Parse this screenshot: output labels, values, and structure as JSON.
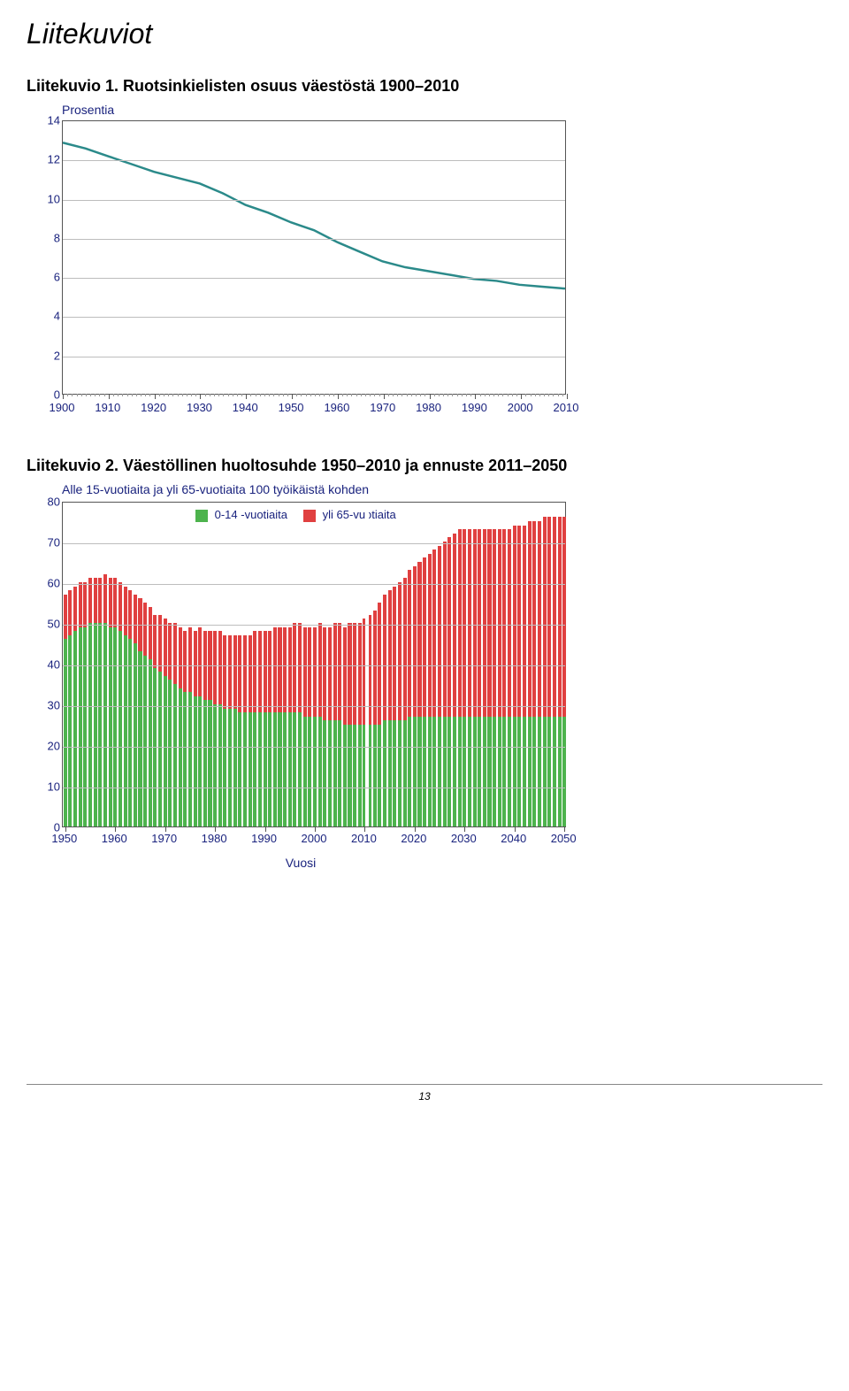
{
  "page": {
    "title": "Liitekuviot",
    "footer_page_number": "13"
  },
  "chart1": {
    "caption_prefix": "Liitekuvio 1.",
    "caption_rest": "Ruotsinkielisten osuus väestöstä 1900–2010",
    "type": "line",
    "y_axis_title": "Prosentia",
    "ylim": [
      0,
      14
    ],
    "ytick_step": 2,
    "yticks": [
      0,
      2,
      4,
      6,
      8,
      10,
      12,
      14
    ],
    "xlim": [
      1900,
      2010
    ],
    "xticks": [
      1900,
      1910,
      1920,
      1930,
      1940,
      1950,
      1960,
      1970,
      1980,
      1990,
      2000,
      2010
    ],
    "xminor_step": 1,
    "line_color": "#2b8a8a",
    "line_width": 2.5,
    "grid_color": "#bdbdbd",
    "axis_color": "#555555",
    "label_color": "#1a237e",
    "background_color": "#ffffff",
    "label_fontsize": 13,
    "data": [
      {
        "x": 1900,
        "y": 12.9
      },
      {
        "x": 1905,
        "y": 12.6
      },
      {
        "x": 1910,
        "y": 12.2
      },
      {
        "x": 1915,
        "y": 11.8
      },
      {
        "x": 1920,
        "y": 11.4
      },
      {
        "x": 1925,
        "y": 11.1
      },
      {
        "x": 1930,
        "y": 10.8
      },
      {
        "x": 1935,
        "y": 10.3
      },
      {
        "x": 1940,
        "y": 9.7
      },
      {
        "x": 1945,
        "y": 9.3
      },
      {
        "x": 1950,
        "y": 8.8
      },
      {
        "x": 1955,
        "y": 8.4
      },
      {
        "x": 1960,
        "y": 7.8
      },
      {
        "x": 1965,
        "y": 7.3
      },
      {
        "x": 1970,
        "y": 6.8
      },
      {
        "x": 1975,
        "y": 6.5
      },
      {
        "x": 1980,
        "y": 6.3
      },
      {
        "x": 1985,
        "y": 6.1
      },
      {
        "x": 1990,
        "y": 5.9
      },
      {
        "x": 1995,
        "y": 5.8
      },
      {
        "x": 2000,
        "y": 5.6
      },
      {
        "x": 2005,
        "y": 5.5
      },
      {
        "x": 2010,
        "y": 5.4
      }
    ]
  },
  "chart2": {
    "caption_prefix": "Liitekuvio 2.",
    "caption_rest": "Väestöllinen huoltosuhde 1950–2010 ja ennuste 2011–2050",
    "type": "stacked-bar",
    "y_axis_title": "Alle 15-vuotiaita ja yli 65-vuotiaita 100 työikäistä kohden",
    "x_axis_title": "Vuosi",
    "legend": [
      {
        "label": "0-14 -vuotiaita",
        "color": "#4db34d"
      },
      {
        "label": "yli 65-vuotiaita",
        "color": "#e04040"
      }
    ],
    "ylim": [
      0,
      80
    ],
    "ytick_step": 10,
    "yticks": [
      0,
      10,
      20,
      30,
      40,
      50,
      60,
      70,
      80
    ],
    "xlim": [
      1950,
      2050
    ],
    "xticks": [
      1950,
      1960,
      1970,
      1980,
      1990,
      2000,
      2010,
      2020,
      2030,
      2040,
      2050
    ],
    "series_green_color": "#4db34d",
    "series_red_color": "#e04040",
    "grid_color": "#bdbdbd",
    "axis_color": "#555555",
    "label_color": "#1a237e",
    "background_color": "#ffffff",
    "label_fontsize": 13,
    "bar_width_ratio": 0.72,
    "gap_after_year": 2010,
    "data": [
      {
        "year": 1950,
        "green": 46,
        "red": 11
      },
      {
        "year": 1951,
        "green": 47,
        "red": 11
      },
      {
        "year": 1952,
        "green": 48,
        "red": 11
      },
      {
        "year": 1953,
        "green": 49,
        "red": 11
      },
      {
        "year": 1954,
        "green": 49,
        "red": 11
      },
      {
        "year": 1955,
        "green": 50,
        "red": 11
      },
      {
        "year": 1956,
        "green": 50,
        "red": 11
      },
      {
        "year": 1957,
        "green": 50,
        "red": 11
      },
      {
        "year": 1958,
        "green": 50,
        "red": 12
      },
      {
        "year": 1959,
        "green": 49,
        "red": 12
      },
      {
        "year": 1960,
        "green": 49,
        "red": 12
      },
      {
        "year": 1961,
        "green": 48,
        "red": 12
      },
      {
        "year": 1962,
        "green": 47,
        "red": 12
      },
      {
        "year": 1963,
        "green": 46,
        "red": 12
      },
      {
        "year": 1964,
        "green": 45,
        "red": 12
      },
      {
        "year": 1965,
        "green": 43,
        "red": 13
      },
      {
        "year": 1966,
        "green": 42,
        "red": 13
      },
      {
        "year": 1967,
        "green": 41,
        "red": 13
      },
      {
        "year": 1968,
        "green": 39,
        "red": 13
      },
      {
        "year": 1969,
        "green": 38,
        "red": 14
      },
      {
        "year": 1970,
        "green": 37,
        "red": 14
      },
      {
        "year": 1971,
        "green": 36,
        "red": 14
      },
      {
        "year": 1972,
        "green": 35,
        "red": 15
      },
      {
        "year": 1973,
        "green": 34,
        "red": 15
      },
      {
        "year": 1974,
        "green": 33,
        "red": 15
      },
      {
        "year": 1975,
        "green": 33,
        "red": 16
      },
      {
        "year": 1976,
        "green": 32,
        "red": 16
      },
      {
        "year": 1977,
        "green": 32,
        "red": 17
      },
      {
        "year": 1978,
        "green": 31,
        "red": 17
      },
      {
        "year": 1979,
        "green": 31,
        "red": 17
      },
      {
        "year": 1980,
        "green": 30,
        "red": 18
      },
      {
        "year": 1981,
        "green": 30,
        "red": 18
      },
      {
        "year": 1982,
        "green": 29,
        "red": 18
      },
      {
        "year": 1983,
        "green": 29,
        "red": 18
      },
      {
        "year": 1984,
        "green": 29,
        "red": 18
      },
      {
        "year": 1985,
        "green": 28,
        "red": 19
      },
      {
        "year": 1986,
        "green": 28,
        "red": 19
      },
      {
        "year": 1987,
        "green": 28,
        "red": 19
      },
      {
        "year": 1988,
        "green": 28,
        "red": 20
      },
      {
        "year": 1989,
        "green": 28,
        "red": 20
      },
      {
        "year": 1990,
        "green": 28,
        "red": 20
      },
      {
        "year": 1991,
        "green": 28,
        "red": 20
      },
      {
        "year": 1992,
        "green": 28,
        "red": 21
      },
      {
        "year": 1993,
        "green": 28,
        "red": 21
      },
      {
        "year": 1994,
        "green": 28,
        "red": 21
      },
      {
        "year": 1995,
        "green": 28,
        "red": 21
      },
      {
        "year": 1996,
        "green": 28,
        "red": 22
      },
      {
        "year": 1997,
        "green": 28,
        "red": 22
      },
      {
        "year": 1998,
        "green": 27,
        "red": 22
      },
      {
        "year": 1999,
        "green": 27,
        "red": 22
      },
      {
        "year": 2000,
        "green": 27,
        "red": 22
      },
      {
        "year": 2001,
        "green": 27,
        "red": 23
      },
      {
        "year": 2002,
        "green": 26,
        "red": 23
      },
      {
        "year": 2003,
        "green": 26,
        "red": 23
      },
      {
        "year": 2004,
        "green": 26,
        "red": 24
      },
      {
        "year": 2005,
        "green": 26,
        "red": 24
      },
      {
        "year": 2006,
        "green": 25,
        "red": 24
      },
      {
        "year": 2007,
        "green": 25,
        "red": 25
      },
      {
        "year": 2008,
        "green": 25,
        "red": 25
      },
      {
        "year": 2009,
        "green": 25,
        "red": 25
      },
      {
        "year": 2010,
        "green": 25,
        "red": 26
      },
      {
        "year": 2011,
        "green": 25,
        "red": 27
      },
      {
        "year": 2012,
        "green": 25,
        "red": 28
      },
      {
        "year": 2013,
        "green": 25,
        "red": 30
      },
      {
        "year": 2014,
        "green": 26,
        "red": 31
      },
      {
        "year": 2015,
        "green": 26,
        "red": 32
      },
      {
        "year": 2016,
        "green": 26,
        "red": 33
      },
      {
        "year": 2017,
        "green": 26,
        "red": 34
      },
      {
        "year": 2018,
        "green": 26,
        "red": 35
      },
      {
        "year": 2019,
        "green": 27,
        "red": 36
      },
      {
        "year": 2020,
        "green": 27,
        "red": 37
      },
      {
        "year": 2021,
        "green": 27,
        "red": 38
      },
      {
        "year": 2022,
        "green": 27,
        "red": 39
      },
      {
        "year": 2023,
        "green": 27,
        "red": 40
      },
      {
        "year": 2024,
        "green": 27,
        "red": 41
      },
      {
        "year": 2025,
        "green": 27,
        "red": 42
      },
      {
        "year": 2026,
        "green": 27,
        "red": 43
      },
      {
        "year": 2027,
        "green": 27,
        "red": 44
      },
      {
        "year": 2028,
        "green": 27,
        "red": 45
      },
      {
        "year": 2029,
        "green": 27,
        "red": 46
      },
      {
        "year": 2030,
        "green": 27,
        "red": 46
      },
      {
        "year": 2031,
        "green": 27,
        "red": 46
      },
      {
        "year": 2032,
        "green": 27,
        "red": 46
      },
      {
        "year": 2033,
        "green": 27,
        "red": 46
      },
      {
        "year": 2034,
        "green": 27,
        "red": 46
      },
      {
        "year": 2035,
        "green": 27,
        "red": 46
      },
      {
        "year": 2036,
        "green": 27,
        "red": 46
      },
      {
        "year": 2037,
        "green": 27,
        "red": 46
      },
      {
        "year": 2038,
        "green": 27,
        "red": 46
      },
      {
        "year": 2039,
        "green": 27,
        "red": 46
      },
      {
        "year": 2040,
        "green": 27,
        "red": 47
      },
      {
        "year": 2041,
        "green": 27,
        "red": 47
      },
      {
        "year": 2042,
        "green": 27,
        "red": 47
      },
      {
        "year": 2043,
        "green": 27,
        "red": 48
      },
      {
        "year": 2044,
        "green": 27,
        "red": 48
      },
      {
        "year": 2045,
        "green": 27,
        "red": 48
      },
      {
        "year": 2046,
        "green": 27,
        "red": 49
      },
      {
        "year": 2047,
        "green": 27,
        "red": 49
      },
      {
        "year": 2048,
        "green": 27,
        "red": 49
      },
      {
        "year": 2049,
        "green": 27,
        "red": 49
      },
      {
        "year": 2050,
        "green": 27,
        "red": 49
      }
    ]
  }
}
